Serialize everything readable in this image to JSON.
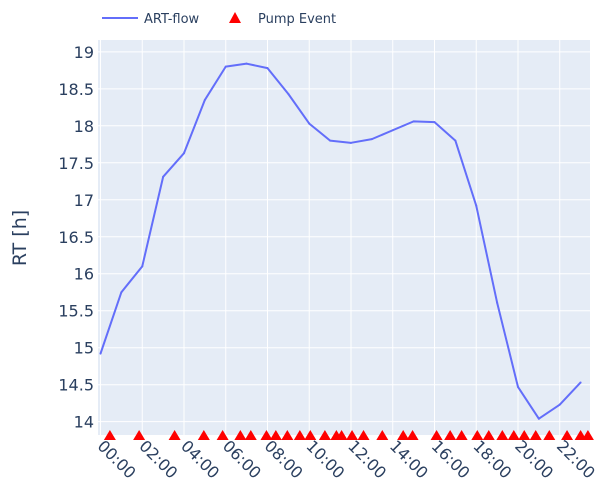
{
  "chart_data": {
    "type": "line",
    "ylabel": "RT [h]",
    "xlabel": "",
    "ylim": [
      13.82,
      19.16
    ],
    "xlim": [
      -0.12,
      23.45
    ],
    "grid": true,
    "legend_position": "top-left",
    "y_ticks": [
      14,
      14.5,
      15,
      15.5,
      16,
      16.5,
      17,
      17.5,
      18,
      18.5,
      19
    ],
    "y_tick_labels": [
      "14",
      "14.5",
      "15",
      "15.5",
      "16",
      "16.5",
      "17",
      "17.5",
      "18",
      "18.5",
      "19"
    ],
    "x_ticks": [
      0,
      2,
      4,
      6,
      8,
      10,
      12,
      14,
      16,
      18,
      20,
      22
    ],
    "x_tick_labels": [
      "00:00",
      "02:00",
      "04:00",
      "06:00",
      "08:00",
      "10:00",
      "12:00",
      "14:00",
      "16:00",
      "18:00",
      "20:00",
      "22:00"
    ],
    "series": [
      {
        "name": "ART-flow",
        "color": "#636efa",
        "x": [
          0,
          1,
          2,
          3,
          4,
          5,
          6,
          7,
          8,
          9,
          10,
          11,
          12,
          13,
          14,
          15,
          16,
          17,
          18,
          19,
          20,
          21,
          22,
          23
        ],
        "y": [
          14.92,
          15.75,
          16.1,
          17.31,
          17.63,
          18.35,
          18.8,
          18.84,
          18.78,
          18.43,
          18.03,
          17.8,
          17.77,
          17.82,
          17.94,
          18.06,
          18.05,
          17.8,
          16.92,
          15.61,
          14.47,
          14.04,
          14.23,
          14.53
        ]
      },
      {
        "name": "Pump Event",
        "color": "#ff0000",
        "marker": "triangle-up",
        "y_value": 13.82,
        "x": [
          0.45,
          1.85,
          3.55,
          4.95,
          5.85,
          6.7,
          7.2,
          7.95,
          8.4,
          8.95,
          9.55,
          10.05,
          10.75,
          11.3,
          11.55,
          12.05,
          12.6,
          13.5,
          14.5,
          14.95,
          16.1,
          16.75,
          17.3,
          18.05,
          18.6,
          19.25,
          19.8,
          20.3,
          20.85,
          21.5,
          22.35,
          23.0,
          23.35
        ]
      }
    ]
  }
}
